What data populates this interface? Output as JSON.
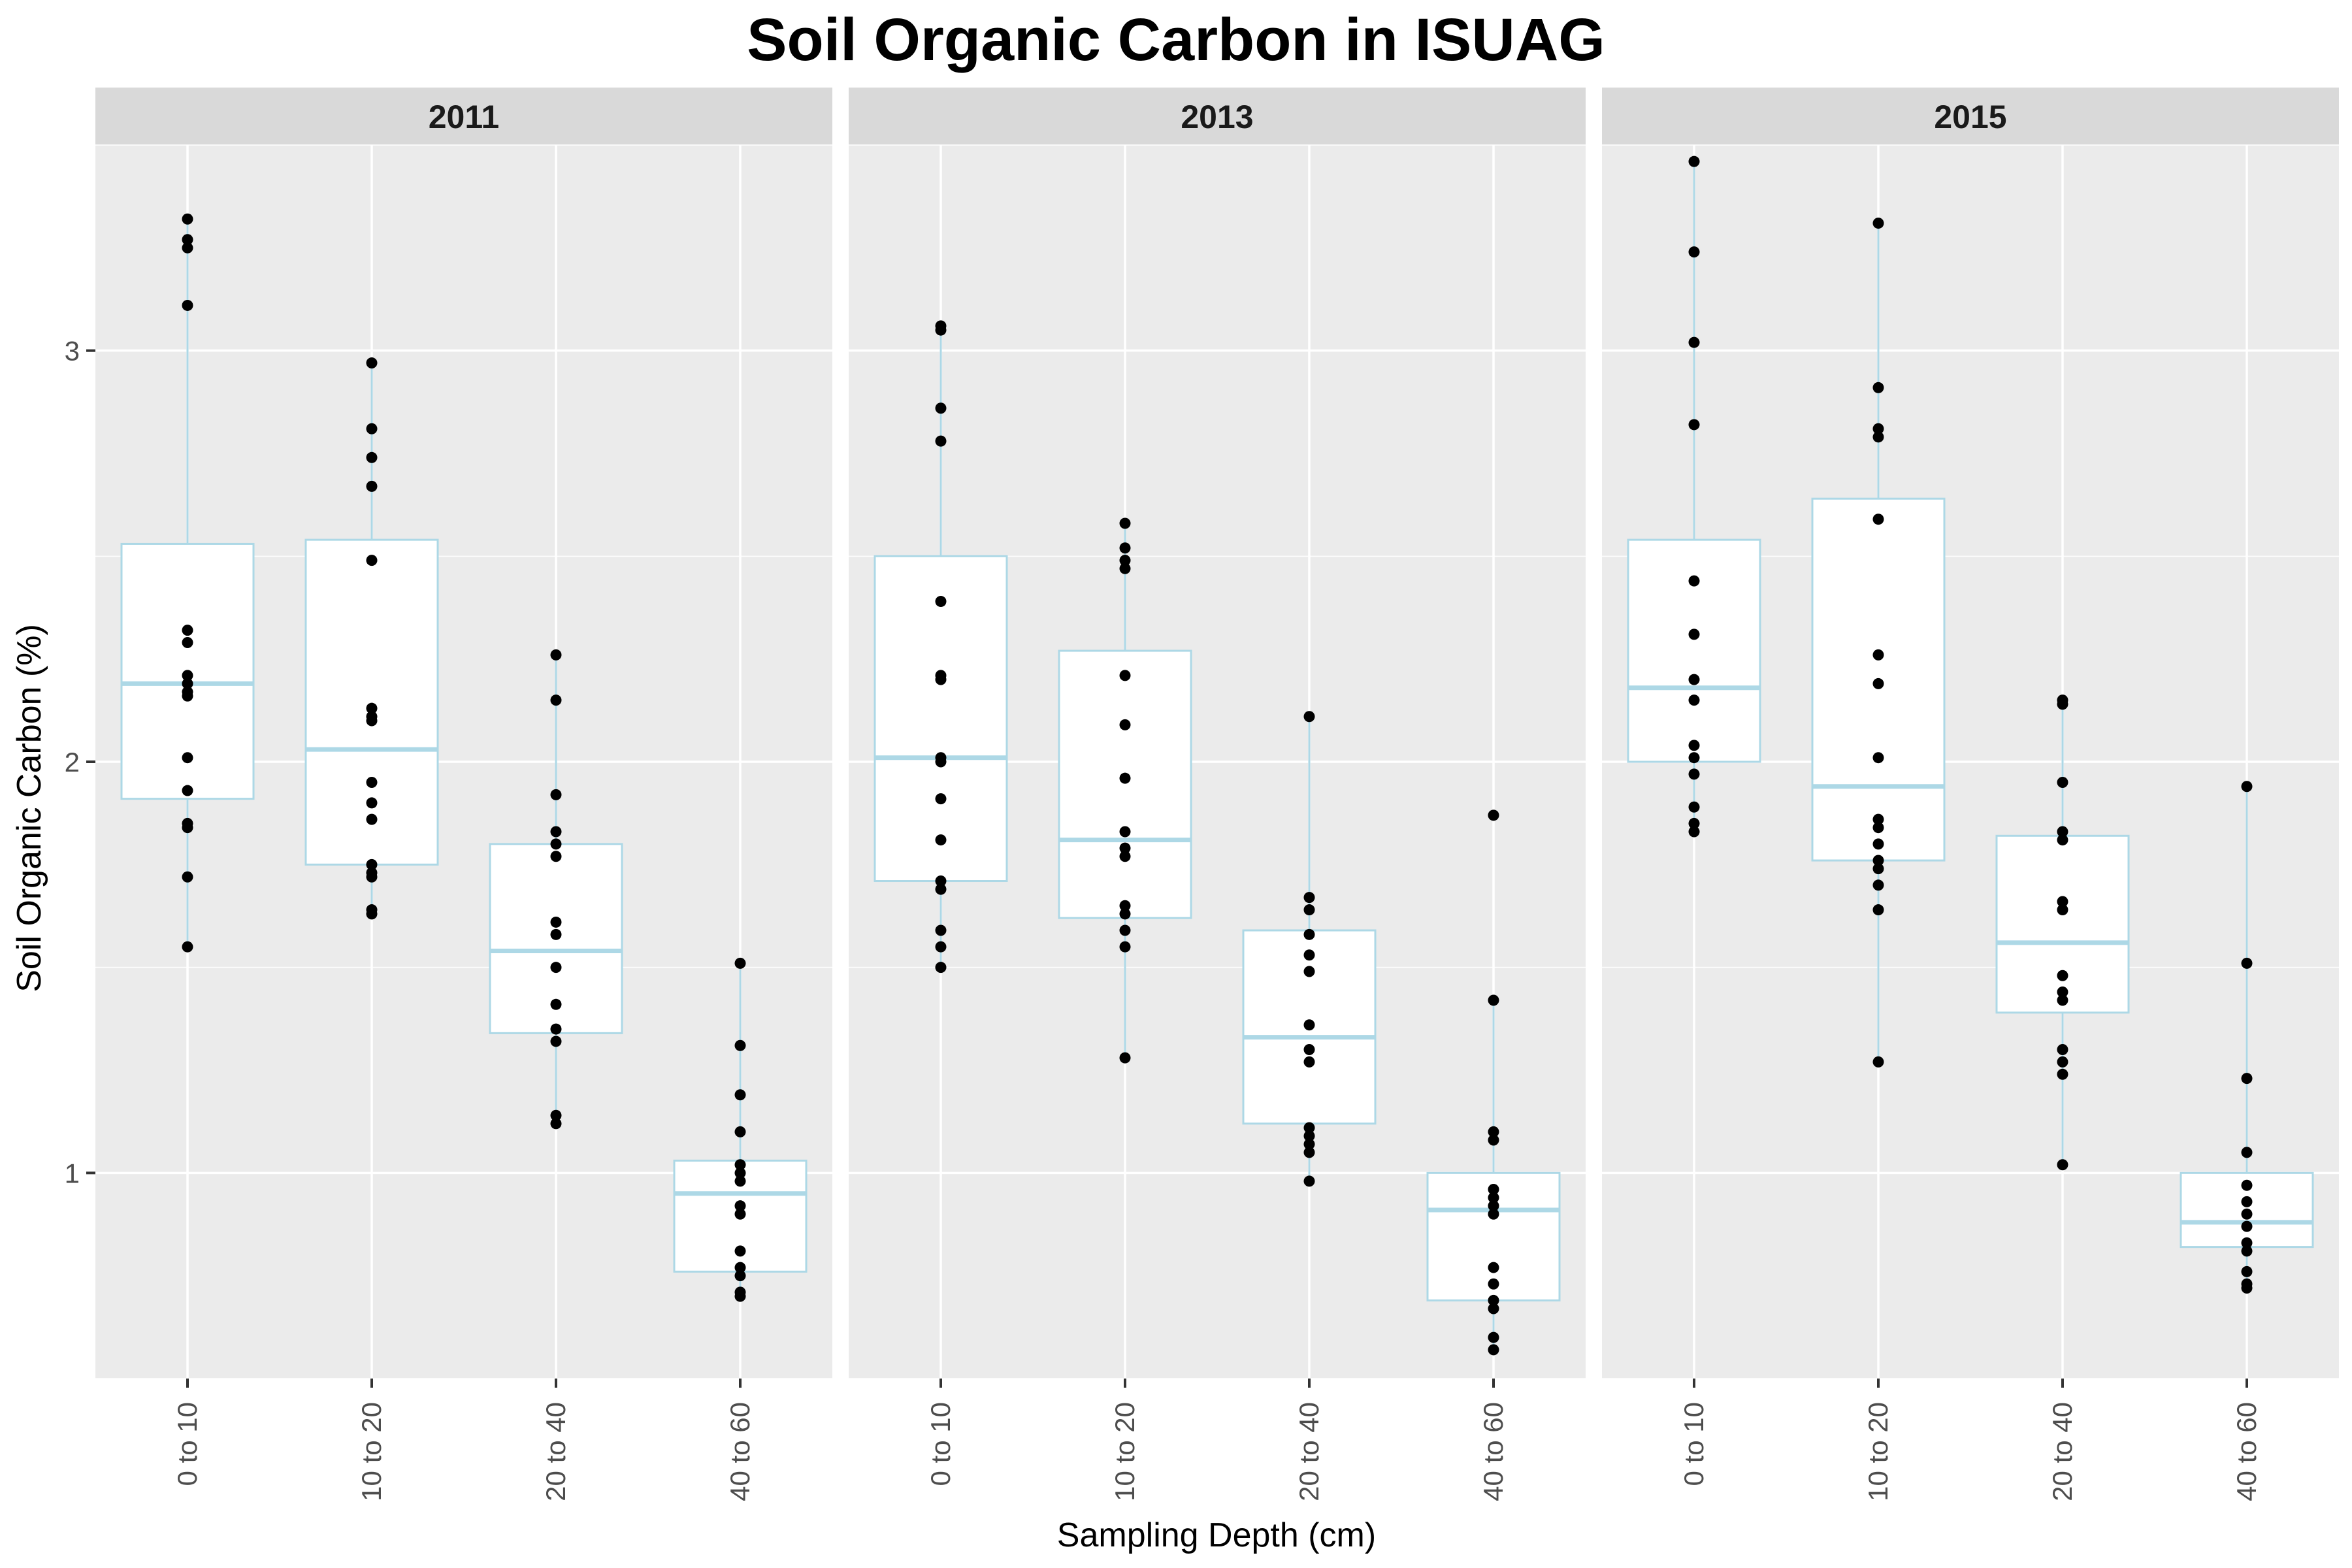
{
  "chart_data": {
    "type": "box",
    "title": "Soil Organic Carbon in ISUAG",
    "xlabel": "Sampling Depth (cm)",
    "ylabel": "Soil Organic Carbon (%)",
    "categories": [
      "0 to 10",
      "10 to 20",
      "20 to 40",
      "40 to 60"
    ],
    "yticks": [
      1,
      2,
      3
    ],
    "ylim": [
      0.5,
      3.5
    ],
    "grid": true,
    "facets": [
      "2011",
      "2013",
      "2015"
    ],
    "panels": [
      {
        "facet": "2011",
        "boxes": [
          {
            "category": "0 to 10",
            "min": 1.55,
            "q1": 1.91,
            "median": 2.19,
            "q3": 2.53,
            "max": 3.32
          },
          {
            "category": "10 to 20",
            "min": 1.63,
            "q1": 1.75,
            "median": 2.03,
            "q3": 2.54,
            "max": 2.97
          },
          {
            "category": "20 to 40",
            "min": 1.12,
            "q1": 1.34,
            "median": 1.54,
            "q3": 1.8,
            "max": 2.26
          },
          {
            "category": "40 to 60",
            "min": 0.7,
            "q1": 0.76,
            "median": 0.95,
            "q3": 1.03,
            "max": 1.51
          }
        ],
        "points": [
          [
            3.32,
            3.27,
            3.25,
            3.11,
            2.32,
            2.29,
            2.21,
            2.19,
            2.17,
            2.16,
            2.01,
            1.93,
            1.85,
            1.84,
            1.72,
            1.55
          ],
          [
            2.97,
            2.81,
            2.74,
            2.67,
            2.49,
            2.13,
            2.11,
            2.1,
            1.95,
            1.9,
            1.86,
            1.75,
            1.73,
            1.72,
            1.64,
            1.63
          ],
          [
            2.26,
            2.15,
            1.92,
            1.83,
            1.8,
            1.77,
            1.61,
            1.58,
            1.5,
            1.41,
            1.35,
            1.32,
            1.14,
            1.12
          ],
          [
            1.51,
            1.31,
            1.19,
            1.1,
            1.02,
            1.0,
            0.98,
            0.92,
            0.9,
            0.81,
            0.77,
            0.75,
            0.71,
            0.7
          ]
        ]
      },
      {
        "facet": "2013",
        "boxes": [
          {
            "category": "0 to 10",
            "min": 1.5,
            "q1": 1.71,
            "median": 2.01,
            "q3": 2.5,
            "max": 3.06
          },
          {
            "category": "10 to 20",
            "min": 1.28,
            "q1": 1.62,
            "median": 1.81,
            "q3": 2.27,
            "max": 2.58
          },
          {
            "category": "20 to 40",
            "min": 0.98,
            "q1": 1.12,
            "median": 1.33,
            "q3": 1.59,
            "max": 2.11
          },
          {
            "category": "40 to 60",
            "min": 0.57,
            "q1": 0.69,
            "median": 0.91,
            "q3": 1.0,
            "max": 1.42
          }
        ],
        "points": [
          [
            3.06,
            3.05,
            2.86,
            2.78,
            2.39,
            2.21,
            2.2,
            2.01,
            2.0,
            1.91,
            1.81,
            1.71,
            1.69,
            1.59,
            1.55,
            1.5
          ],
          [
            2.58,
            2.52,
            2.49,
            2.47,
            2.21,
            2.09,
            1.96,
            1.83,
            1.79,
            1.77,
            1.65,
            1.63,
            1.59,
            1.55,
            1.28
          ],
          [
            2.11,
            1.67,
            1.64,
            1.58,
            1.53,
            1.49,
            1.36,
            1.3,
            1.27,
            1.11,
            1.09,
            1.07,
            1.05,
            0.98
          ],
          [
            1.87,
            1.42,
            1.1,
            1.08,
            0.96,
            0.94,
            0.92,
            0.9,
            0.77,
            0.73,
            0.69,
            0.67,
            0.6,
            0.57
          ]
        ]
      },
      {
        "facet": "2015",
        "boxes": [
          {
            "category": "0 to 10",
            "min": 1.83,
            "q1": 2.0,
            "median": 2.18,
            "q3": 2.54,
            "max": 3.46
          },
          {
            "category": "10 to 20",
            "min": 1.27,
            "q1": 1.76,
            "median": 1.94,
            "q3": 2.64,
            "max": 3.31
          },
          {
            "category": "20 to 40",
            "min": 1.02,
            "q1": 1.39,
            "median": 1.56,
            "q3": 1.82,
            "max": 2.15
          },
          {
            "category": "40 to 60",
            "min": 0.72,
            "q1": 0.82,
            "median": 0.88,
            "q3": 1.0,
            "max": 1.94
          }
        ],
        "points": [
          [
            3.46,
            3.24,
            3.02,
            2.82,
            2.44,
            2.31,
            2.2,
            2.15,
            2.04,
            2.01,
            1.97,
            1.89,
            1.85,
            1.83
          ],
          [
            3.31,
            2.91,
            2.81,
            2.79,
            2.59,
            2.26,
            2.19,
            2.01,
            1.86,
            1.84,
            1.8,
            1.76,
            1.74,
            1.7,
            1.64,
            1.27
          ],
          [
            2.15,
            2.14,
            1.95,
            1.83,
            1.81,
            1.66,
            1.64,
            1.48,
            1.44,
            1.42,
            1.3,
            1.27,
            1.24,
            1.02
          ],
          [
            1.94,
            1.51,
            1.23,
            1.05,
            0.97,
            0.93,
            0.9,
            0.87,
            0.83,
            0.81,
            0.76,
            0.73,
            0.72
          ]
        ]
      }
    ],
    "colors": {
      "panel_background": "#EBEBEB",
      "grid_major": "#FFFFFF",
      "strip_background": "#D9D9D9",
      "box_outline": "#ADD8E6",
      "box_fill": "#FFFFFF",
      "point": "#000000",
      "tick_label": "#4D4D4D",
      "tick_mark": "#333333"
    }
  }
}
